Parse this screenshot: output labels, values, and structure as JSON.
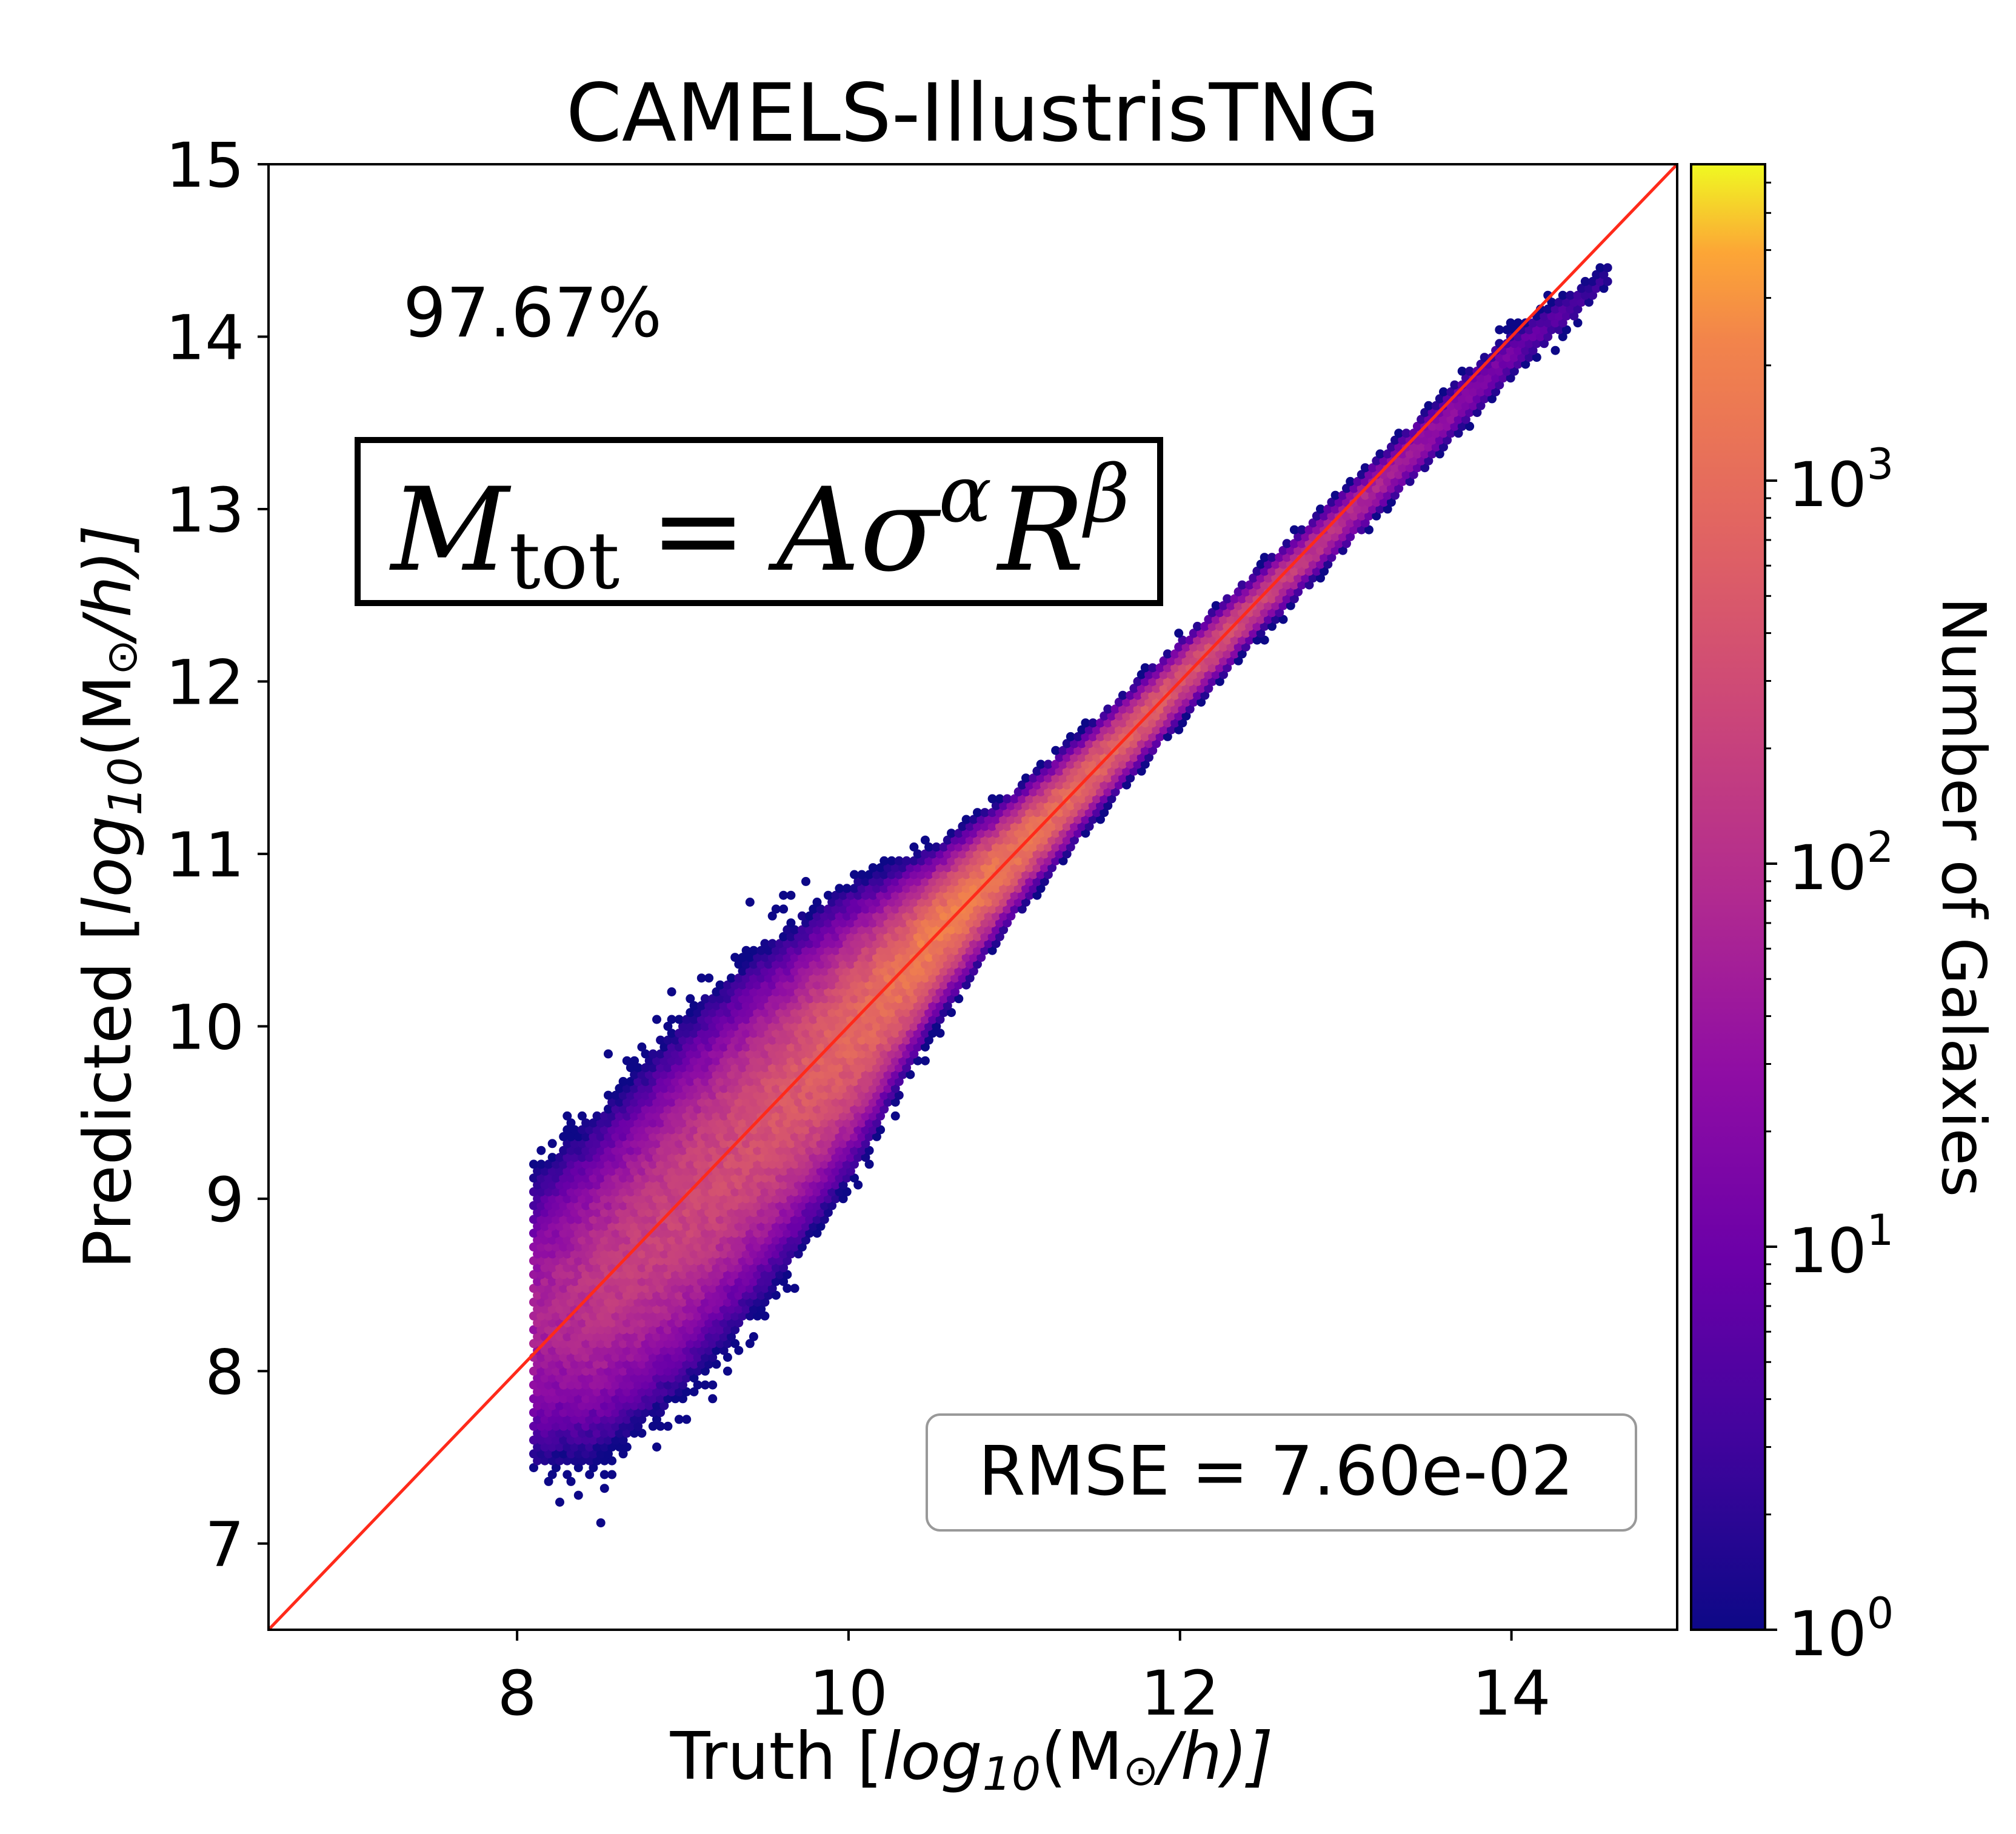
{
  "chart_data": {
    "type": "hexbin",
    "title": "CAMELS-IllustrisTNG",
    "xlabel": {
      "prefix": "Truth [",
      "log": "log",
      "sub": "10",
      "rest": "(M",
      "sun": "⊙",
      "unit": "/h)]"
    },
    "ylabel": {
      "prefix": "Predicted [",
      "log": "log",
      "sub": "10",
      "rest": "(M",
      "sun": "⊙",
      "unit": "/h)]"
    },
    "xlim": [
      6.5,
      15
    ],
    "ylim": [
      6.5,
      15
    ],
    "xticks": [
      "8",
      "10",
      "12",
      "14"
    ],
    "yticks": [
      "7",
      "8",
      "9",
      "10",
      "11",
      "12",
      "13",
      "14",
      "15"
    ],
    "reference_line": {
      "type": "y=x",
      "color": "#ff2a1a"
    },
    "density_band": {
      "truth": [
        8.1,
        8.5,
        9.0,
        9.5,
        10.0,
        10.5,
        11.0,
        11.5,
        12.0,
        12.5,
        13.0,
        13.5,
        14.0,
        14.6
      ],
      "predicted_center": [
        8.3,
        8.5,
        8.95,
        9.45,
        9.95,
        10.5,
        11.0,
        11.5,
        12.0,
        12.48,
        12.95,
        13.42,
        13.9,
        14.35
      ],
      "spread": [
        0.3,
        0.32,
        0.33,
        0.3,
        0.24,
        0.14,
        0.1,
        0.08,
        0.07,
        0.06,
        0.06,
        0.06,
        0.06,
        0.05
      ],
      "peak_count": [
        60,
        150,
        250,
        400,
        800,
        2000,
        1500,
        800,
        500,
        250,
        100,
        40,
        12,
        2
      ]
    },
    "colorbar": {
      "label": "Number of Galaxies",
      "scale": "log",
      "range": [
        1,
        6700
      ],
      "colormap": "plasma",
      "ticks": [
        {
          "base": "10",
          "exp": "0"
        },
        {
          "base": "10",
          "exp": "1"
        },
        {
          "base": "10",
          "exp": "2"
        },
        {
          "base": "10",
          "exp": "3"
        }
      ]
    },
    "annotations": {
      "accuracy": "97.67%",
      "formula": {
        "M": "M",
        "sub": "tot",
        "eq": "=",
        "A": "A",
        "sigma": "σ",
        "alpha": "α",
        "R": "R",
        "beta": "β"
      },
      "rmse": "RMSE = 7.60e-02"
    },
    "grid": false
  }
}
